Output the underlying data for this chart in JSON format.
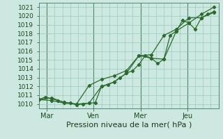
{
  "background_color": "#cce8e0",
  "grid_color": "#99ccbb",
  "line_color": "#2d6a2d",
  "marker_color": "#2d6a2d",
  "xlabel": "Pression niveau de la mer( hPa )",
  "ylim": [
    1009.5,
    1021.5
  ],
  "yticks": [
    1010,
    1011,
    1012,
    1013,
    1014,
    1015,
    1016,
    1017,
    1018,
    1019,
    1020,
    1021
  ],
  "xtick_labels": [
    "Mar",
    "Ven",
    "Mer",
    "Jeu"
  ],
  "xtick_positions": [
    0.5,
    3.5,
    6.5,
    9.5
  ],
  "xlim": [
    0,
    11.5
  ],
  "series1_x": [
    0.0,
    0.4,
    0.8,
    1.2,
    1.6,
    2.0,
    2.4,
    2.8,
    3.2,
    3.6,
    4.0,
    4.4,
    4.8,
    5.2,
    5.6,
    6.0,
    6.4,
    6.8,
    7.2,
    7.6,
    8.0,
    8.4,
    8.8,
    9.2,
    9.6,
    10.0,
    10.4,
    10.8,
    11.2
  ],
  "series1_y": [
    1010.5,
    1010.8,
    1010.6,
    1010.4,
    1010.2,
    1010.1,
    1009.9,
    1010.0,
    1010.1,
    1010.15,
    1012.0,
    1012.2,
    1012.5,
    1013.0,
    1013.5,
    1013.8,
    1014.5,
    1015.5,
    1015.2,
    1014.6,
    1015.1,
    1017.8,
    1018.3,
    1019.5,
    1019.2,
    1018.5,
    1019.8,
    1020.2,
    1020.5
  ],
  "series2_x": [
    0.0,
    0.8,
    1.6,
    2.4,
    3.2,
    4.0,
    4.8,
    5.6,
    6.4,
    7.2,
    8.0,
    8.8,
    9.6,
    10.4,
    11.2
  ],
  "series2_y": [
    1010.5,
    1010.4,
    1010.1,
    1010.0,
    1010.1,
    1012.0,
    1012.5,
    1013.5,
    1015.5,
    1015.2,
    1015.1,
    1018.3,
    1019.2,
    1020.2,
    1021.0
  ],
  "series3_x": [
    0.0,
    0.8,
    1.6,
    2.4,
    3.2,
    4.0,
    4.8,
    5.6,
    6.4,
    7.2,
    8.0,
    8.8,
    9.6,
    10.4,
    11.2
  ],
  "series3_y": [
    1010.5,
    1010.7,
    1010.2,
    1010.0,
    1012.1,
    1012.8,
    1013.2,
    1013.8,
    1015.5,
    1015.6,
    1017.8,
    1018.5,
    1019.8,
    1019.8,
    1020.4
  ],
  "xlabel_fontsize": 8,
  "ytick_fontsize": 6.5,
  "xtick_fontsize": 7
}
